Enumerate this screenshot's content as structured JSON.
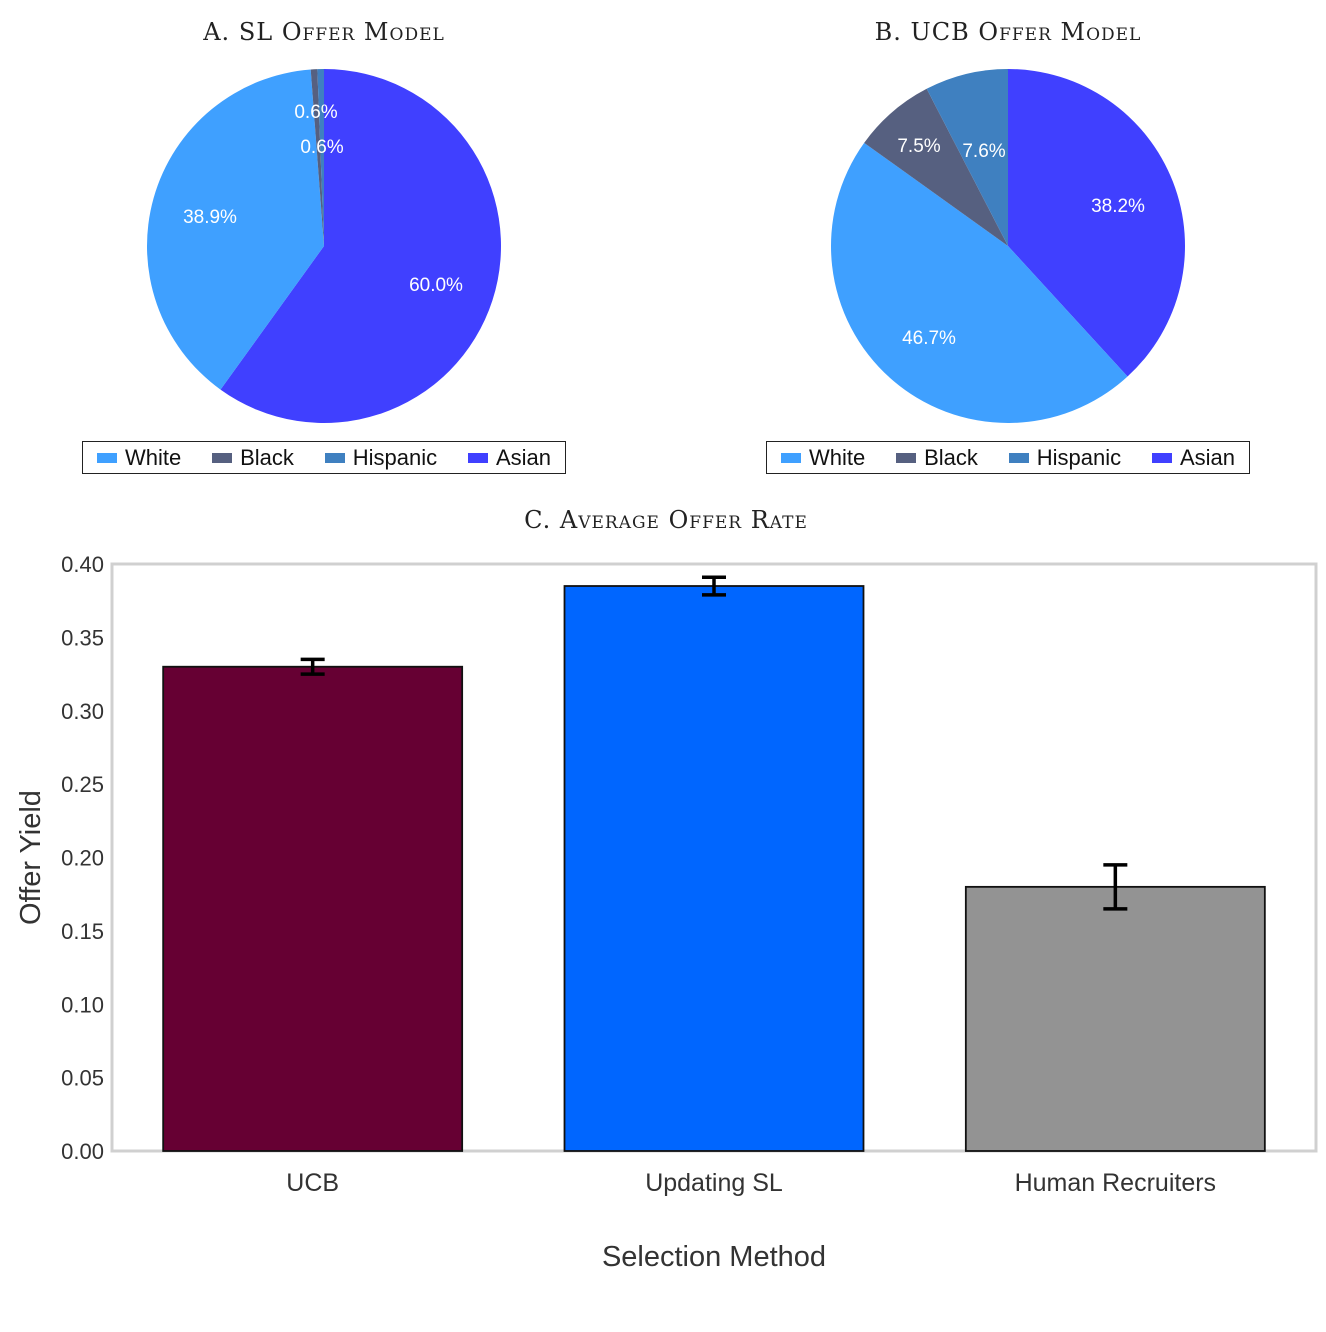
{
  "chart_data": [
    {
      "type": "pie",
      "title": "A. SL Offer Model",
      "categories": [
        "White",
        "Black",
        "Hispanic",
        "Asian"
      ],
      "values": [
        38.9,
        0.6,
        0.6,
        60.0
      ],
      "labels": [
        "38.9%",
        "0.6%",
        "0.6%",
        "60.0%"
      ],
      "colors": [
        "#3fa0ff",
        "#566080",
        "#3f80c0",
        "#4040ff"
      ],
      "legend": "bottom"
    },
    {
      "type": "pie",
      "title": "B. UCB Offer Model",
      "categories": [
        "White",
        "Black",
        "Hispanic",
        "Asian"
      ],
      "values": [
        46.7,
        7.5,
        7.6,
        38.2
      ],
      "labels": [
        "46.7%",
        "7.5%",
        "7.6%",
        "38.2%"
      ],
      "colors": [
        "#3fa0ff",
        "#566080",
        "#3f80c0",
        "#4040ff"
      ],
      "legend": "bottom"
    },
    {
      "type": "bar",
      "title": "C. Average Offer Rate",
      "categories": [
        "UCB",
        "Updating SL",
        "Human Recruiters"
      ],
      "values": [
        0.33,
        0.385,
        0.18
      ],
      "error": [
        [
          0.325,
          0.335
        ],
        [
          0.379,
          0.391
        ],
        [
          0.165,
          0.195
        ]
      ],
      "colors": [
        "#660033",
        "#0066ff",
        "#939393"
      ],
      "xlabel": "Selection Method",
      "ylabel": "Offer Yield",
      "ylim": [
        0,
        0.4
      ],
      "yticks": [
        "0.00",
        "0.05",
        "0.10",
        "0.15",
        "0.20",
        "0.25",
        "0.30",
        "0.35",
        "0.40"
      ],
      "grid": false
    }
  ]
}
